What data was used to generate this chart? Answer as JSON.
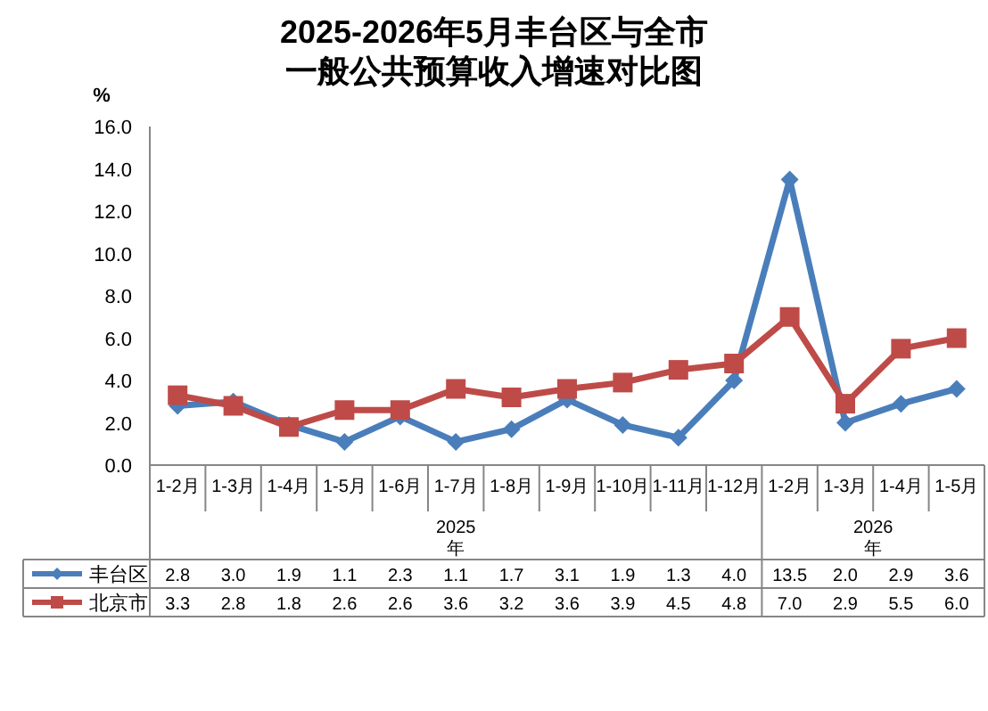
{
  "chart_data": {
    "type": "line",
    "title": "2025-2026年5月丰台区与全市一般公共预算收入增速对比图",
    "ylabel": "%",
    "categories": [
      "1-2月",
      "1-3月",
      "1-4月",
      "1-5月",
      "1-6月",
      "1-7月",
      "1-8月",
      "1-9月",
      "1-10月",
      "1-11月",
      "1-12月",
      "1-2月",
      "1-3月",
      "1-4月",
      "1-5月"
    ],
    "annotations": [
      "2025年",
      "2026年"
    ],
    "series": [
      {
        "name": "丰台区",
        "color": "#4a7ebb",
        "marker": "diamond",
        "values": [
          2.8,
          3.0,
          1.9,
          1.1,
          2.3,
          1.1,
          1.7,
          3.1,
          1.9,
          1.3,
          4.0,
          13.5,
          2.0,
          2.9,
          3.6
        ],
        "value_labels": [
          "2.8",
          "3.0",
          "1.9",
          "1.1",
          "2.3",
          "1.1",
          "1.7",
          "3.1",
          "1.9",
          "1.3",
          "4.0",
          "13.5",
          "2.0",
          "2.9",
          "3.6"
        ]
      },
      {
        "name": "北京市",
        "color": "#be4b48",
        "marker": "square",
        "values": [
          3.3,
          2.8,
          1.8,
          2.6,
          2.6,
          3.6,
          3.2,
          3.6,
          3.9,
          4.5,
          4.8,
          7.0,
          2.9,
          5.5,
          6.0
        ],
        "value_labels": [
          "3.3",
          "2.8",
          "1.8",
          "2.6",
          "2.6",
          "3.6",
          "3.2",
          "3.6",
          "3.9",
          "4.5",
          "4.8",
          "7.0",
          "2.9",
          "5.5",
          "6.0"
        ]
      }
    ],
    "ylim": [
      0,
      16
    ],
    "yticks": [
      {
        "value": 0,
        "label": "0.0"
      },
      {
        "value": 2,
        "label": "2.0"
      },
      {
        "value": 4,
        "label": "4.0"
      },
      {
        "value": 6,
        "label": "6.0"
      },
      {
        "value": 8,
        "label": "8.0"
      },
      {
        "value": 10,
        "label": "10.0"
      },
      {
        "value": 12,
        "label": "12.0"
      },
      {
        "value": 14,
        "label": "14.0"
      },
      {
        "value": 16,
        "label": "16.0"
      }
    ],
    "grid": false,
    "legend": "bottom left"
  }
}
